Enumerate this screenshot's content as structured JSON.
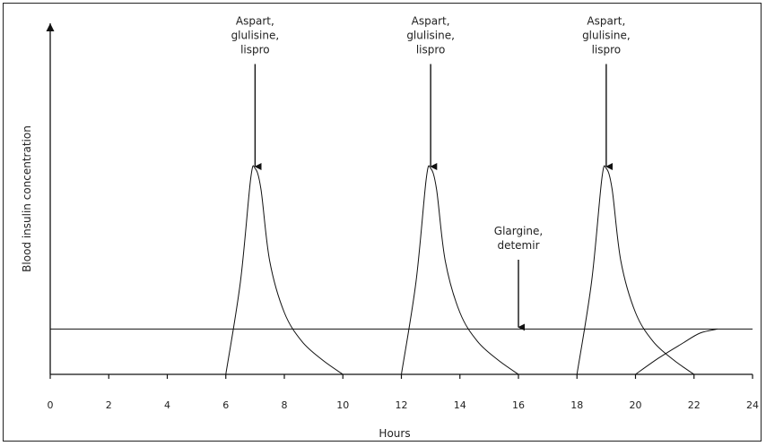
{
  "chart_data": {
    "type": "line",
    "xlabel": "Hours",
    "ylabel": "Blood insulin concentration",
    "xlim": [
      0,
      24
    ],
    "ylim": [
      0,
      1
    ],
    "x_ticks": [
      0,
      2,
      4,
      6,
      8,
      10,
      12,
      14,
      16,
      18,
      20,
      22,
      24
    ],
    "grid": false,
    "series": [
      {
        "type": "bolus",
        "points": [
          [
            6,
            0
          ],
          [
            6.5,
            0.45
          ],
          [
            6.85,
            0.95
          ],
          [
            7.0,
            1.0
          ],
          [
            7.2,
            0.9
          ],
          [
            7.5,
            0.55
          ],
          [
            8.0,
            0.3
          ],
          [
            8.6,
            0.16
          ],
          [
            9.3,
            0.07
          ],
          [
            10,
            0
          ]
        ]
      },
      {
        "type": "bolus",
        "points": [
          [
            12,
            0
          ],
          [
            12.5,
            0.45
          ],
          [
            12.85,
            0.95
          ],
          [
            13.0,
            1.0
          ],
          [
            13.2,
            0.9
          ],
          [
            13.5,
            0.55
          ],
          [
            14.0,
            0.3
          ],
          [
            14.6,
            0.16
          ],
          [
            15.3,
            0.07
          ],
          [
            16,
            0
          ]
        ]
      },
      {
        "type": "bolus",
        "points": [
          [
            18,
            0
          ],
          [
            18.5,
            0.45
          ],
          [
            18.85,
            0.95
          ],
          [
            19.0,
            1.0
          ],
          [
            19.2,
            0.9
          ],
          [
            19.5,
            0.55
          ],
          [
            20.0,
            0.3
          ],
          [
            20.6,
            0.16
          ],
          [
            21.3,
            0.07
          ],
          [
            22,
            0
          ]
        ]
      },
      {
        "type": "basal",
        "points": [
          [
            0,
            0.22
          ],
          [
            24,
            0.22
          ]
        ]
      },
      {
        "type": "basal-start",
        "points": [
          [
            20,
            0
          ],
          [
            20.8,
            0.08
          ],
          [
            21.6,
            0.15
          ],
          [
            22.2,
            0.2
          ],
          [
            22.8,
            0.22
          ]
        ]
      }
    ],
    "annotations": [
      {
        "lines": [
          "Aspart,",
          "glulisine,",
          "lispro"
        ],
        "x": 7,
        "arrow_y": 1.0,
        "label_y": 1.55
      },
      {
        "lines": [
          "Aspart,",
          "glulisine,",
          "lispro"
        ],
        "x": 13,
        "arrow_y": 1.0,
        "label_y": 1.55
      },
      {
        "lines": [
          "Aspart,",
          "glulisine,",
          "lispro"
        ],
        "x": 19,
        "arrow_y": 1.0,
        "label_y": 1.55
      },
      {
        "lines": [
          "Glargine,",
          "detemir"
        ],
        "x": 16,
        "arrow_y": 0.22,
        "label_y": 0.6
      }
    ]
  }
}
